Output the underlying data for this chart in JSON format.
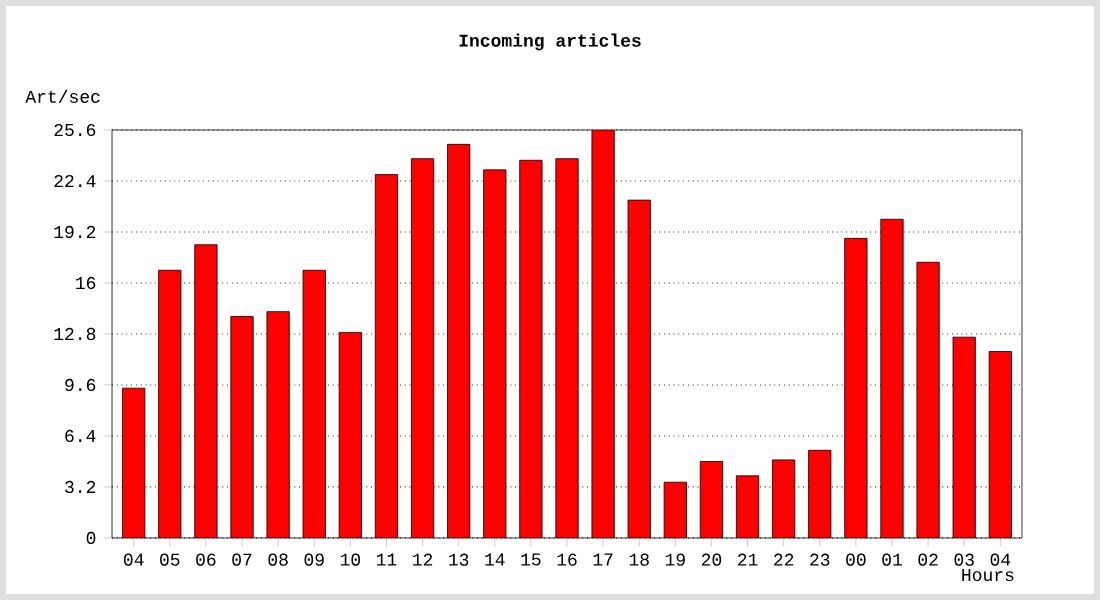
{
  "chart_data": {
    "type": "bar",
    "title": "Incoming articles",
    "ylabel": "Art/sec",
    "xlabel": "Hours",
    "categories": [
      "04",
      "05",
      "06",
      "07",
      "08",
      "09",
      "10",
      "11",
      "12",
      "13",
      "14",
      "15",
      "16",
      "17",
      "18",
      "19",
      "20",
      "21",
      "22",
      "23",
      "00",
      "01",
      "02",
      "03",
      "04"
    ],
    "values": [
      9.4,
      16.8,
      18.4,
      13.9,
      14.2,
      16.8,
      12.9,
      22.8,
      23.8,
      24.7,
      23.1,
      23.7,
      23.8,
      25.6,
      21.2,
      3.5,
      4.8,
      3.9,
      4.9,
      5.5,
      18.8,
      20.0,
      17.3,
      12.6,
      11.7
    ],
    "color": "#ff0000",
    "ylim": [
      0,
      25.6
    ],
    "yticks": [
      0,
      3.2,
      6.4,
      9.6,
      12.8,
      16,
      19.2,
      22.4,
      25.6
    ],
    "grid": "y"
  }
}
